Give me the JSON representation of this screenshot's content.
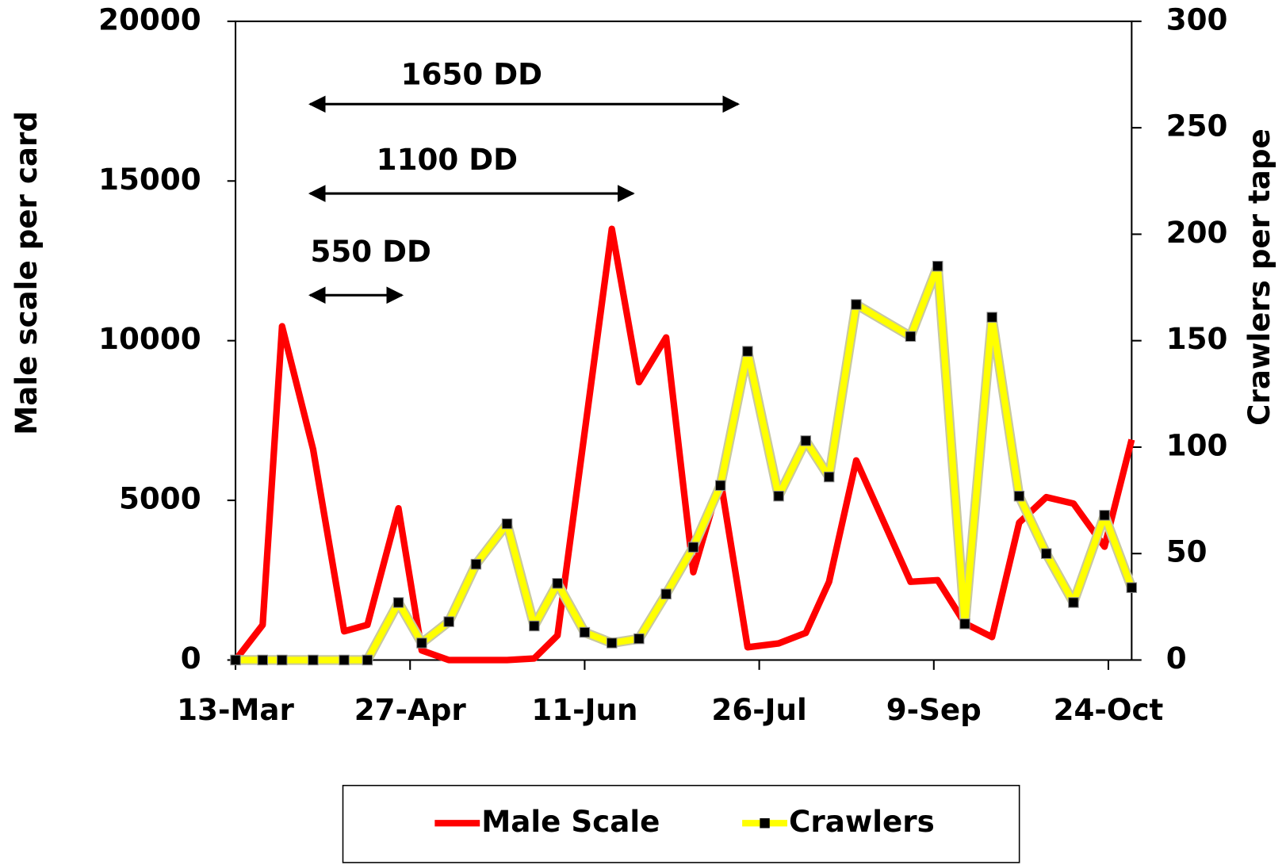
{
  "chart_data": {
    "type": "line",
    "y_label": "Male scale per card",
    "y2_label": "Crawlers per tape",
    "xlim": [
      "13-Mar",
      "30-Oct"
    ],
    "xticks": [
      "13-Mar",
      "27-Apr",
      "11-Jun",
      "26-Jul",
      "9-Sep",
      "24-Oct"
    ],
    "ylim": [
      0,
      20000
    ],
    "yticks": [
      0,
      5000,
      10000,
      15000,
      20000
    ],
    "y2lim": [
      0,
      300
    ],
    "y2ticks": [
      0,
      50,
      100,
      150,
      200,
      250,
      300
    ],
    "annotations": [
      "1650 DD",
      "1100 DD",
      "550 DD"
    ],
    "series": [
      {
        "name": "Male Scale",
        "color": "#ff0000",
        "x": [
          "13-Mar",
          "20-Mar",
          "25-Mar",
          "2-Apr",
          "10-Apr",
          "16-Apr",
          "24-Apr",
          "30-Apr",
          "7-May",
          "22-May",
          "29-May",
          "4-Jun",
          "18-Jun",
          "25-Jun",
          "2-Jul",
          "9-Jul",
          "16-Jul",
          "23-Jul",
          "31-Jul",
          "7-Aug",
          "13-Aug",
          "20-Aug",
          "3-Sep",
          "10-Sep",
          "17-Sep",
          "24-Sep",
          "1-Oct",
          "8-Oct",
          "15-Oct",
          "23-Oct",
          "30-Oct"
        ],
        "values": [
          0,
          1100,
          10450,
          6600,
          900,
          1100,
          4750,
          300,
          0,
          0,
          50,
          770,
          13500,
          8700,
          10100,
          2750,
          5650,
          400,
          520,
          850,
          2450,
          6250,
          2450,
          2500,
          1150,
          720,
          4300,
          5100,
          4900,
          3550,
          6900
        ]
      },
      {
        "name": "Crawlers",
        "color": "#ffff00",
        "axis": "y2",
        "marker_color": "#000000",
        "x": [
          "13-Mar",
          "20-Mar",
          "25-Mar",
          "2-Apr",
          "10-Apr",
          "16-Apr",
          "24-Apr",
          "30-Apr",
          "7-May",
          "14-May",
          "22-May",
          "29-May",
          "4-Jun",
          "11-Jun",
          "18-Jun",
          "25-Jun",
          "2-Jul",
          "9-Jul",
          "16-Jul",
          "23-Jul",
          "31-Jul",
          "7-Aug",
          "13-Aug",
          "20-Aug",
          "3-Sep",
          "10-Sep",
          "17-Sep",
          "24-Sep",
          "1-Oct",
          "8-Oct",
          "15-Oct",
          "23-Oct",
          "30-Oct"
        ],
        "values": [
          0,
          0,
          0,
          0,
          0,
          0,
          27,
          8,
          18,
          45,
          64,
          16,
          36,
          13,
          8,
          10,
          31,
          53,
          82,
          145,
          77,
          103,
          86,
          167,
          152,
          185,
          17,
          161,
          77,
          50,
          27,
          68,
          34
        ]
      }
    ]
  }
}
